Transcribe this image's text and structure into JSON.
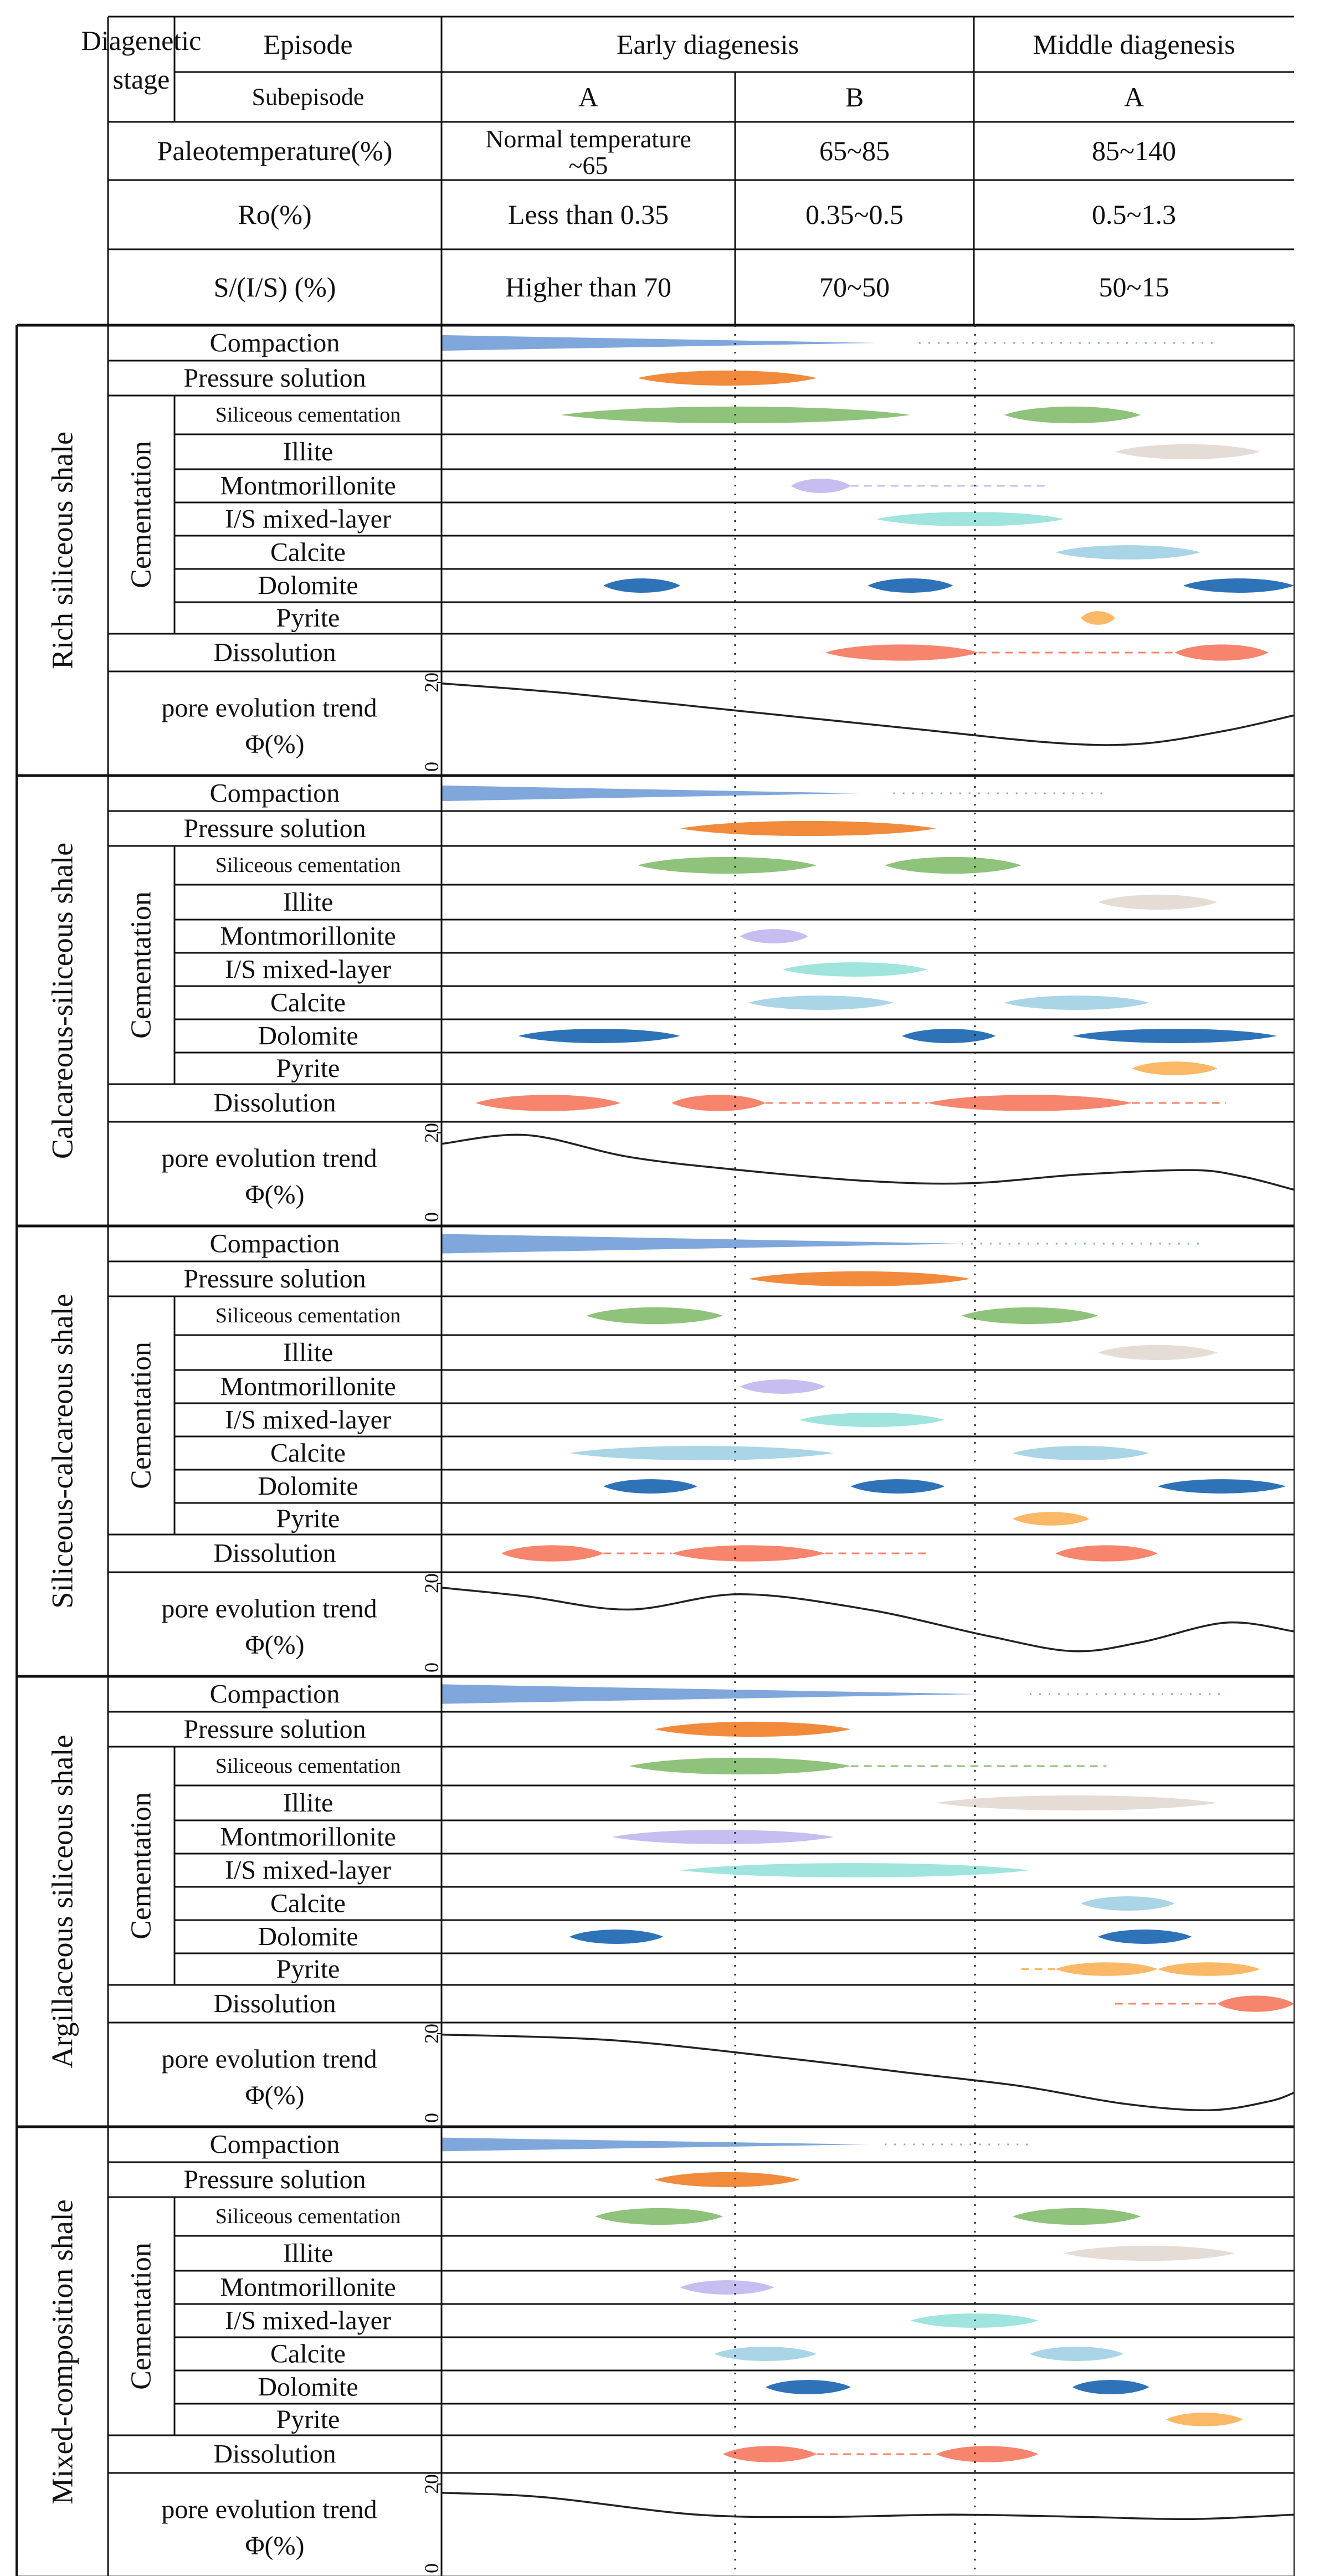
{
  "header": {
    "stage_label": "Diagenetic stage",
    "episode_label": "Episode",
    "subepisode_label": "Subepisode",
    "early": "Early diagenesis",
    "middle": "Middle diagenesis",
    "sub_a": "A",
    "sub_b": "B",
    "sub_c": "A",
    "rows": [
      {
        "label": "Paleotemperature(%)",
        "a": "Normal temperature ~65",
        "b": "65~85",
        "c": "85~140"
      },
      {
        "label": "Ro(%)",
        "a": "Less than 0.35",
        "b": "0.35~0.5",
        "c": "0.5~1.3"
      },
      {
        "label": "S/(I/S) (%)",
        "a": "Higher than 70",
        "b": "70~50",
        "c": "50~15"
      }
    ]
  },
  "labels": {
    "compaction": "Compaction",
    "pressure": "Pressure solution",
    "cementation": "Cementation",
    "siliceous": "Siliceous cementation",
    "illite": "Illite",
    "montmorillonite": "Montmorillonite",
    "is_mixed": "I/S mixed-layer",
    "calcite": "Calcite",
    "dolomite": "Dolomite",
    "pyrite": "Pyrite",
    "dissolution": "Dissolution",
    "pore": "pore evolution trend",
    "phi": "Φ(%)",
    "axis_max": "20",
    "axis_min": "0"
  },
  "colors": {
    "compaction": "#7fa7dc",
    "pressure": "#f28a3c",
    "siliceous": "#8fc27a",
    "illite": "#e6dcd6",
    "montmorillonite": "#c7bdf0",
    "is_mixed": "#9fe4dd",
    "calcite": "#a9d5e6",
    "dolomite": "#2e72b8",
    "pyrite": "#fbb866",
    "dissolution": "#f7846d"
  },
  "sections": [
    {
      "name": "Rich siliceous shale",
      "compaction": {
        "end": 0.51,
        "thick": 0.8,
        "dot_from": 0.56,
        "dot_to": 0.91
      },
      "processes": {
        "pressure": [
          {
            "s": 0.23,
            "e": 0.44
          }
        ],
        "siliceous": [
          {
            "s": 0.14,
            "e": 0.55
          },
          {
            "s": 0.66,
            "e": 0.82
          }
        ],
        "illite": [
          {
            "s": 0.79,
            "e": 0.96
          }
        ],
        "montmorillonite": [
          {
            "s": 0.41,
            "e": 0.48,
            "dash_to": 0.71
          }
        ],
        "is_mixed": [
          {
            "s": 0.51,
            "e": 0.73
          }
        ],
        "calcite": [
          {
            "s": 0.72,
            "e": 0.89
          }
        ],
        "dolomite": [
          {
            "s": 0.19,
            "e": 0.28
          },
          {
            "s": 0.5,
            "e": 0.6
          },
          {
            "s": 0.87,
            "e": 1.0
          }
        ],
        "pyrite": [
          {
            "s": 0.75,
            "e": 0.79
          }
        ],
        "dissolution": [
          {
            "s": 0.45,
            "e": 0.63,
            "dash_to": 0.86
          },
          {
            "s": 0.86,
            "e": 0.97
          }
        ]
      },
      "pore_curve": [
        [
          0,
          19.8
        ],
        [
          0.15,
          17.5
        ],
        [
          0.35,
          13.5
        ],
        [
          0.55,
          9.5
        ],
        [
          0.72,
          6.2
        ],
        [
          0.82,
          6.0
        ],
        [
          0.92,
          9.0
        ],
        [
          1.0,
          12.5
        ]
      ]
    },
    {
      "name": "Calcareous-siliceous shale",
      "compaction": {
        "end": 0.49,
        "thick": 0.8,
        "dot_from": 0.53,
        "dot_to": 0.78
      },
      "processes": {
        "pressure": [
          {
            "s": 0.28,
            "e": 0.58
          }
        ],
        "siliceous": [
          {
            "s": 0.23,
            "e": 0.44
          },
          {
            "s": 0.52,
            "e": 0.68
          }
        ],
        "illite": [
          {
            "s": 0.77,
            "e": 0.91
          }
        ],
        "montmorillonite": [
          {
            "s": 0.35,
            "e": 0.43
          }
        ],
        "is_mixed": [
          {
            "s": 0.4,
            "e": 0.57
          }
        ],
        "calcite": [
          {
            "s": 0.36,
            "e": 0.53
          },
          {
            "s": 0.66,
            "e": 0.83
          }
        ],
        "dolomite": [
          {
            "s": 0.09,
            "e": 0.28
          },
          {
            "s": 0.54,
            "e": 0.65
          },
          {
            "s": 0.74,
            "e": 0.98
          }
        ],
        "pyrite": [
          {
            "s": 0.81,
            "e": 0.91
          }
        ],
        "dissolution": [
          {
            "s": 0.04,
            "e": 0.21
          },
          {
            "s": 0.27,
            "e": 0.38,
            "dash_to": 0.57
          },
          {
            "s": 0.57,
            "e": 0.81,
            "dash_to": 0.92
          }
        ]
      },
      "pore_curve": [
        [
          0,
          17.5
        ],
        [
          0.1,
          19.5
        ],
        [
          0.22,
          14.5
        ],
        [
          0.35,
          11.5
        ],
        [
          0.5,
          9.0
        ],
        [
          0.62,
          8.5
        ],
        [
          0.75,
          10.5
        ],
        [
          0.88,
          11.5
        ],
        [
          0.94,
          10.0
        ],
        [
          1.0,
          7.0
        ]
      ]
    },
    {
      "name": "Siliceous-calcareous shale",
      "compaction": {
        "end": 0.61,
        "thick": 1.0,
        "dot_from": 0.61,
        "dot_to": 0.89
      },
      "processes": {
        "pressure": [
          {
            "s": 0.36,
            "e": 0.62
          }
        ],
        "siliceous": [
          {
            "s": 0.17,
            "e": 0.33
          },
          {
            "s": 0.61,
            "e": 0.77
          }
        ],
        "illite": [
          {
            "s": 0.77,
            "e": 0.91
          }
        ],
        "montmorillonite": [
          {
            "s": 0.35,
            "e": 0.45
          }
        ],
        "is_mixed": [
          {
            "s": 0.42,
            "e": 0.59
          }
        ],
        "calcite": [
          {
            "s": 0.15,
            "e": 0.46
          },
          {
            "s": 0.67,
            "e": 0.83
          }
        ],
        "dolomite": [
          {
            "s": 0.19,
            "e": 0.3
          },
          {
            "s": 0.48,
            "e": 0.59
          },
          {
            "s": 0.84,
            "e": 0.99
          }
        ],
        "pyrite": [
          {
            "s": 0.67,
            "e": 0.76
          }
        ],
        "dissolution": [
          {
            "s": 0.07,
            "e": 0.19,
            "dash_to": 0.27
          },
          {
            "s": 0.27,
            "e": 0.45,
            "dash_to": 0.57
          },
          {
            "s": 0.72,
            "e": 0.84
          }
        ]
      },
      "pore_curve": [
        [
          0,
          19.0
        ],
        [
          0.1,
          17.0
        ],
        [
          0.22,
          14.0
        ],
        [
          0.35,
          17.5
        ],
        [
          0.5,
          14.0
        ],
        [
          0.64,
          8.0
        ],
        [
          0.74,
          4.5
        ],
        [
          0.82,
          6.5
        ],
        [
          0.92,
          11.0
        ],
        [
          1.0,
          9.0
        ]
      ]
    },
    {
      "name": "Argillaceous siliceous shale",
      "compaction": {
        "end": 0.63,
        "thick": 1.0,
        "dot_from": 0.69,
        "dot_to": 0.92
      },
      "processes": {
        "pressure": [
          {
            "s": 0.25,
            "e": 0.48
          }
        ],
        "siliceous": [
          {
            "s": 0.22,
            "e": 0.48,
            "dash_to": 0.78
          }
        ],
        "illite": [
          {
            "s": 0.58,
            "e": 0.91
          }
        ],
        "montmorillonite": [
          {
            "s": 0.2,
            "e": 0.46
          }
        ],
        "is_mixed": [
          {
            "s": 0.28,
            "e": 0.69
          }
        ],
        "calcite": [
          {
            "s": 0.75,
            "e": 0.86
          }
        ],
        "dolomite": [
          {
            "s": 0.15,
            "e": 0.26
          },
          {
            "s": 0.77,
            "e": 0.88
          }
        ],
        "pyrite": [
          {
            "s": 0.72,
            "e": 0.84,
            "dash_from": 0.68
          },
          {
            "s": 0.84,
            "e": 0.96
          }
        ],
        "dissolution": [
          {
            "s": 0.91,
            "e": 1.0,
            "dash_from": 0.79
          }
        ]
      },
      "pore_curve": [
        [
          0,
          19.8
        ],
        [
          0.2,
          18.5
        ],
        [
          0.4,
          14.5
        ],
        [
          0.55,
          11.0
        ],
        [
          0.68,
          8.0
        ],
        [
          0.8,
          4.0
        ],
        [
          0.9,
          2.5
        ],
        [
          0.97,
          4.5
        ],
        [
          1.0,
          6.5
        ]
      ]
    },
    {
      "name": "Mixed-composition shale",
      "compaction": {
        "end": 0.5,
        "thick": 0.7,
        "dot_from": 0.52,
        "dot_to": 0.69
      },
      "processes": {
        "pressure": [
          {
            "s": 0.25,
            "e": 0.42
          }
        ],
        "siliceous": [
          {
            "s": 0.18,
            "e": 0.33
          },
          {
            "s": 0.67,
            "e": 0.82
          }
        ],
        "illite": [
          {
            "s": 0.73,
            "e": 0.93
          }
        ],
        "montmorillonite": [
          {
            "s": 0.28,
            "e": 0.39
          }
        ],
        "is_mixed": [
          {
            "s": 0.55,
            "e": 0.7
          }
        ],
        "calcite": [
          {
            "s": 0.32,
            "e": 0.44
          },
          {
            "s": 0.69,
            "e": 0.8
          }
        ],
        "dolomite": [
          {
            "s": 0.38,
            "e": 0.48
          },
          {
            "s": 0.74,
            "e": 0.83
          }
        ],
        "pyrite": [
          {
            "s": 0.85,
            "e": 0.94
          }
        ],
        "dissolution": [
          {
            "s": 0.33,
            "e": 0.44,
            "dash_to": 0.58
          },
          {
            "s": 0.58,
            "e": 0.7
          }
        ]
      },
      "pore_curve": [
        [
          0,
          18.0
        ],
        [
          0.12,
          17.0
        ],
        [
          0.3,
          13.0
        ],
        [
          0.45,
          12.5
        ],
        [
          0.6,
          13.0
        ],
        [
          0.75,
          12.5
        ],
        [
          0.88,
          12.0
        ],
        [
          1.0,
          13.0
        ]
      ]
    }
  ]
}
